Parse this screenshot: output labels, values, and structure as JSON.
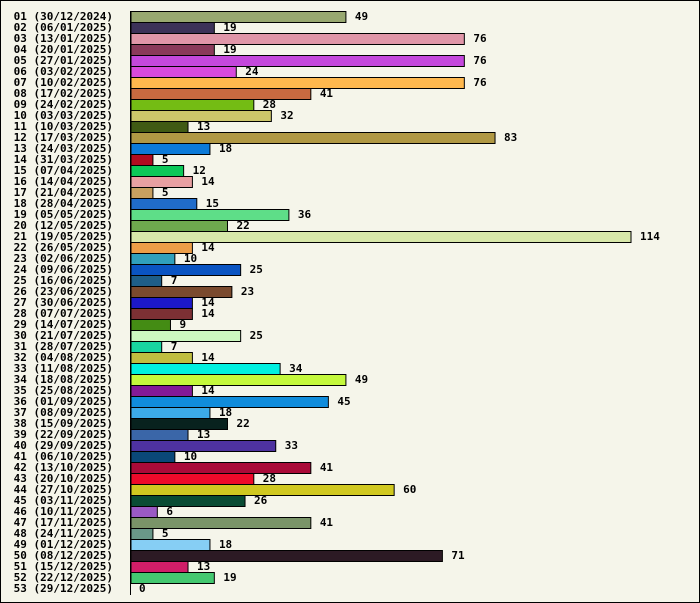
{
  "chart_data": {
    "type": "bar",
    "orientation": "horizontal",
    "title": "",
    "xlabel": "",
    "ylabel": "",
    "xlim": [
      0,
      114
    ],
    "grid": false,
    "categories": [
      "01 (30/12/2024)",
      "02 (06/01/2025)",
      "03 (13/01/2025)",
      "04 (20/01/2025)",
      "05 (27/01/2025)",
      "06 (03/02/2025)",
      "07 (10/02/2025)",
      "08 (17/02/2025)",
      "09 (24/02/2025)",
      "10 (03/03/2025)",
      "11 (10/03/2025)",
      "12 (17/03/2025)",
      "13 (24/03/2025)",
      "14 (31/03/2025)",
      "15 (07/04/2025)",
      "16 (14/04/2025)",
      "17 (21/04/2025)",
      "18 (28/04/2025)",
      "19 (05/05/2025)",
      "20 (12/05/2025)",
      "21 (19/05/2025)",
      "22 (26/05/2025)",
      "23 (02/06/2025)",
      "24 (09/06/2025)",
      "25 (16/06/2025)",
      "26 (23/06/2025)",
      "27 (30/06/2025)",
      "28 (07/07/2025)",
      "29 (14/07/2025)",
      "30 (21/07/2025)",
      "31 (28/07/2025)",
      "32 (04/08/2025)",
      "33 (11/08/2025)",
      "34 (18/08/2025)",
      "35 (25/08/2025)",
      "36 (01/09/2025)",
      "37 (08/09/2025)",
      "38 (15/09/2025)",
      "39 (22/09/2025)",
      "40 (29/09/2025)",
      "41 (06/10/2025)",
      "42 (13/10/2025)",
      "43 (20/10/2025)",
      "44 (27/10/2025)",
      "45 (03/11/2025)",
      "46 (10/11/2025)",
      "47 (17/11/2025)",
      "48 (24/11/2025)",
      "49 (01/12/2025)",
      "50 (08/12/2025)",
      "51 (15/12/2025)",
      "52 (22/12/2025)",
      "53 (29/12/2025)"
    ],
    "values": [
      49,
      19,
      76,
      19,
      76,
      24,
      76,
      41,
      28,
      32,
      13,
      83,
      18,
      5,
      12,
      14,
      5,
      15,
      36,
      22,
      114,
      14,
      10,
      25,
      7,
      23,
      14,
      14,
      9,
      25,
      7,
      14,
      34,
      49,
      14,
      45,
      18,
      22,
      13,
      33,
      10,
      41,
      28,
      60,
      26,
      6,
      41,
      5,
      18,
      71,
      13,
      19,
      0
    ],
    "colors": [
      "#98a870",
      "#3c3258",
      "#e096a8",
      "#8a3a5a",
      "#c448dc",
      "#d84ade",
      "#ffb84e",
      "#c86a40",
      "#74bc14",
      "#ccc66a",
      "#405a14",
      "#b09844",
      "#0c7ad8",
      "#b00c20",
      "#0cc858",
      "#e8a0a2",
      "#c8a060",
      "#206cca",
      "#5ede88",
      "#6ea84e",
      "#d8e8aa",
      "#ec9e48",
      "#30a0bc",
      "#0a54c2",
      "#1e5e88",
      "#7a4a2e",
      "#1c18c8",
      "#7c3034",
      "#448c14",
      "#ccf8c0",
      "#18d4a0",
      "#c0be40",
      "#00f0e0",
      "#c4f83c",
      "#841a98",
      "#108cdc",
      "#3caae8",
      "#08221e",
      "#3a66a8",
      "#4e32a0",
      "#0a4878",
      "#aa0a38",
      "#ee0a2a",
      "#d0c820",
      "#0a4c34",
      "#9a5ac4",
      "#7a9468",
      "#6a9888",
      "#86cef4",
      "#2c1a24",
      "#d01e68",
      "#44c870",
      "#888888"
    ]
  }
}
